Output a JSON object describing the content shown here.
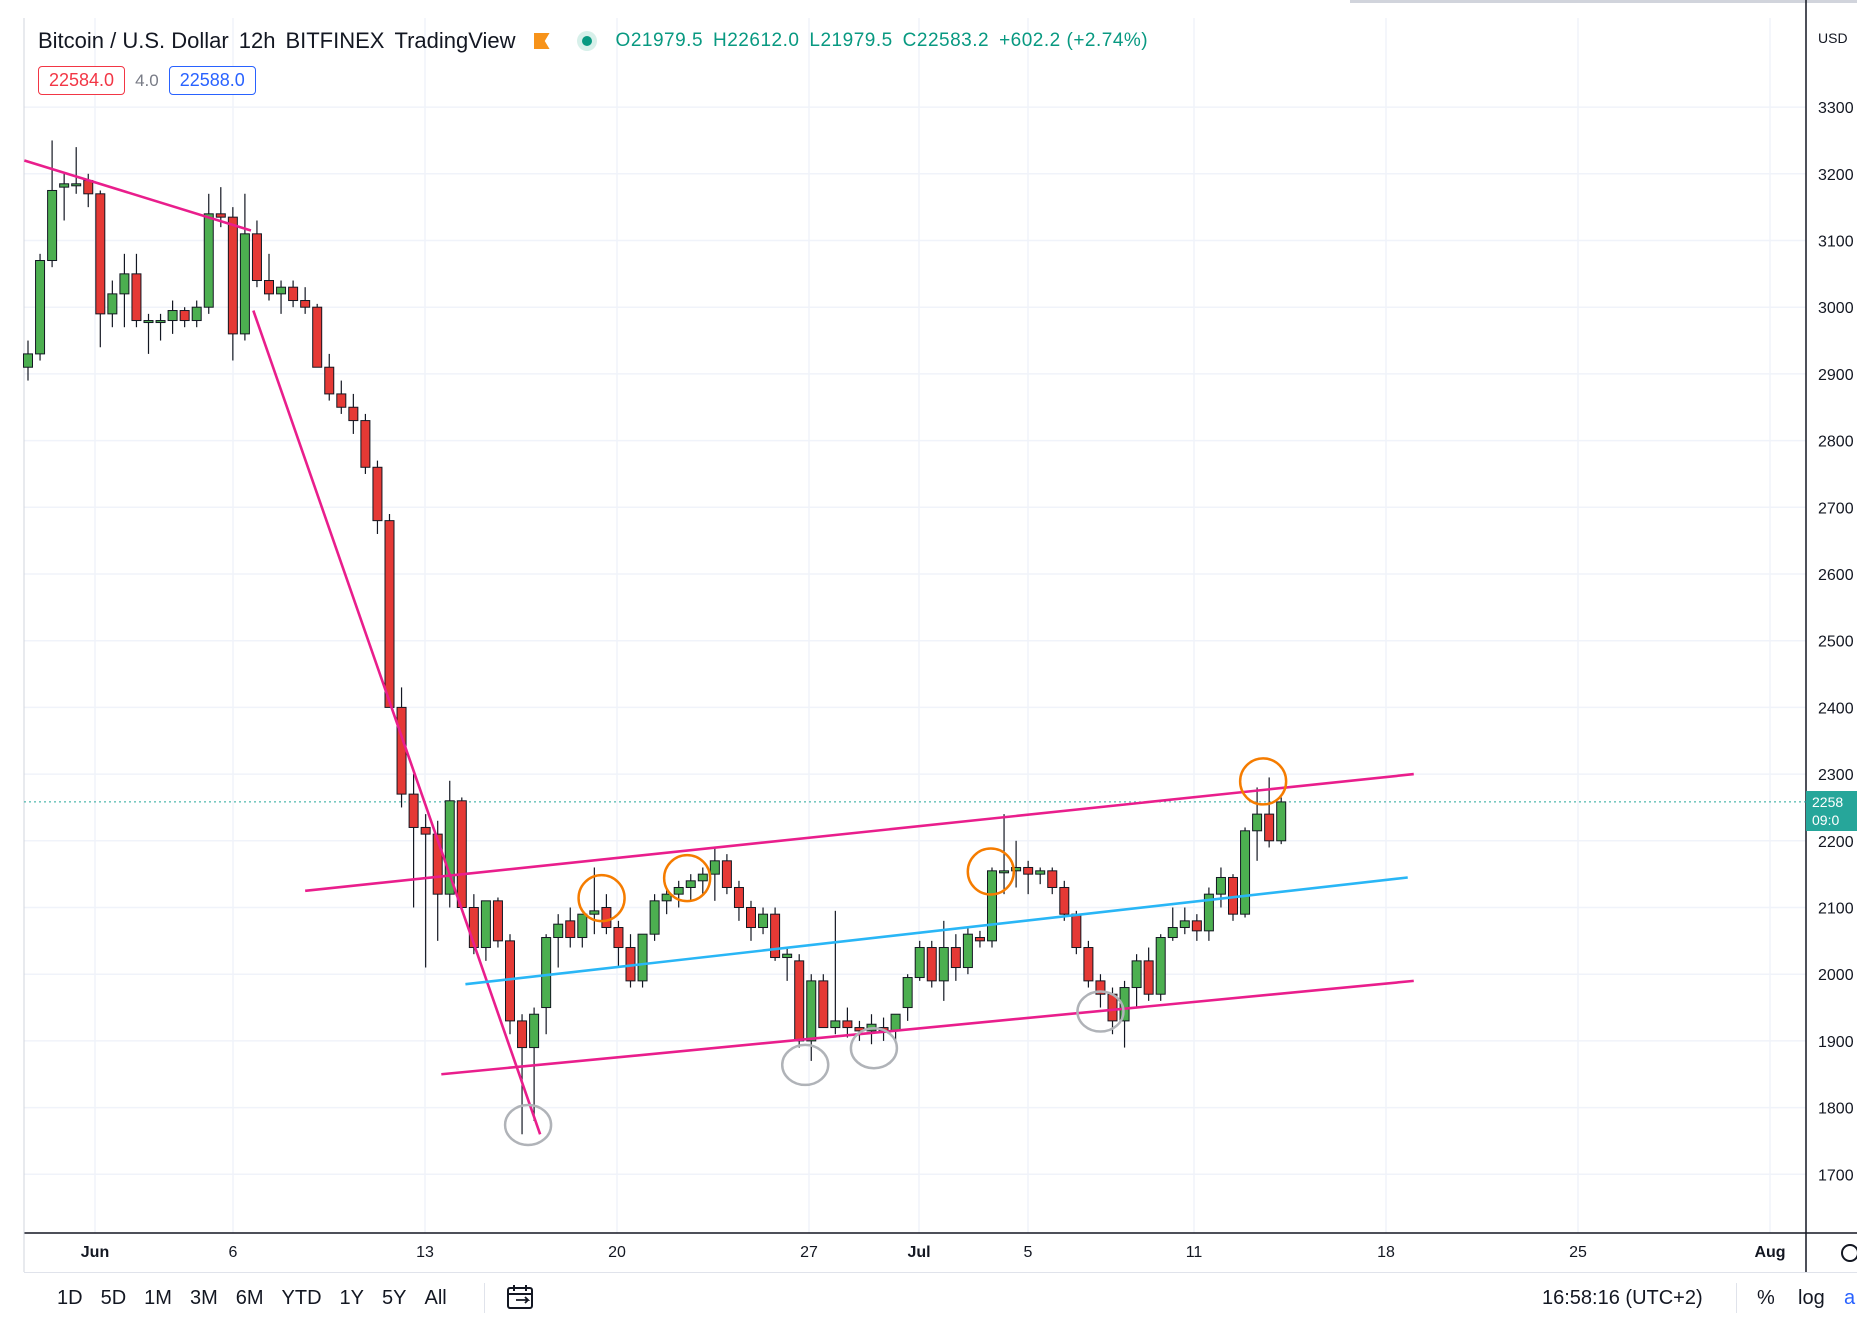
{
  "legend": {
    "symbol": "Bitcoin / U.S. Dollar",
    "interval": "12h",
    "exchange": "BITFINEX",
    "source": "TradingView",
    "open": "O21979.5",
    "high": "H22612.0",
    "low": "L21979.5",
    "close": "C22583.2",
    "change": "+602.2 (+2.74%)"
  },
  "price_boxes": {
    "sell": "22584.0",
    "spread": "4.0",
    "buy": "22588.0"
  },
  "price_axis": {
    "currency": "USD",
    "ticks": [
      "3300",
      "3200",
      "3100",
      "3000",
      "2900",
      "2800",
      "2700",
      "2600",
      "2500",
      "2400",
      "2300",
      "2200",
      "2100",
      "2000",
      "1900",
      "1800",
      "1700"
    ],
    "current_price": "2258",
    "countdown": "09:0"
  },
  "time_axis": {
    "ticks": [
      {
        "label": "Jun",
        "bold": true
      },
      {
        "label": "6",
        "bold": false
      },
      {
        "label": "13",
        "bold": false
      },
      {
        "label": "20",
        "bold": false
      },
      {
        "label": "27",
        "bold": false
      },
      {
        "label": "Jul",
        "bold": true
      },
      {
        "label": "5",
        "bold": false
      },
      {
        "label": "11",
        "bold": false
      },
      {
        "label": "18",
        "bold": false
      },
      {
        "label": "25",
        "bold": false
      },
      {
        "label": "Aug",
        "bold": true
      }
    ]
  },
  "bottom_toolbar": {
    "ranges": [
      "1D",
      "5D",
      "1M",
      "3M",
      "6M",
      "YTD",
      "1Y",
      "5Y",
      "All"
    ],
    "clock": "16:58:16 (UTC+2)",
    "percent": "%",
    "log": "log",
    "auto": "a"
  },
  "colors": {
    "up": "#4caf50",
    "down": "#e53935",
    "trendline": "#e91e8c",
    "midline": "#29b6f6",
    "resistance_circle": "#f57c00",
    "support_circle": "#b0b3b8"
  },
  "chart_data": {
    "type": "candlestick",
    "interval": "12h",
    "ylim": [
      16500,
      34000
    ],
    "candles": [
      {
        "o": 29100,
        "h": 29500,
        "l": 28900,
        "c": 29300
      },
      {
        "o": 29300,
        "h": 30800,
        "l": 29200,
        "c": 30700
      },
      {
        "o": 30700,
        "h": 32500,
        "l": 30600,
        "c": 31750
      },
      {
        "o": 31800,
        "h": 32000,
        "l": 31300,
        "c": 31850
      },
      {
        "o": 31850,
        "h": 32400,
        "l": 31700,
        "c": 31850
      },
      {
        "o": 31900,
        "h": 32000,
        "l": 31500,
        "c": 31700
      },
      {
        "o": 31700,
        "h": 31750,
        "l": 29400,
        "c": 29900
      },
      {
        "o": 29900,
        "h": 30400,
        "l": 29700,
        "c": 30200
      },
      {
        "o": 30200,
        "h": 30800,
        "l": 29700,
        "c": 30500
      },
      {
        "o": 30500,
        "h": 30800,
        "l": 29700,
        "c": 29800
      },
      {
        "o": 29800,
        "h": 29900,
        "l": 29300,
        "c": 29800
      },
      {
        "o": 29800,
        "h": 29900,
        "l": 29500,
        "c": 29800
      },
      {
        "o": 29800,
        "h": 30100,
        "l": 29600,
        "c": 29950
      },
      {
        "o": 29950,
        "h": 30000,
        "l": 29700,
        "c": 29800
      },
      {
        "o": 29800,
        "h": 30100,
        "l": 29700,
        "c": 30000
      },
      {
        "o": 30000,
        "h": 31700,
        "l": 29900,
        "c": 31400
      },
      {
        "o": 31400,
        "h": 31800,
        "l": 31200,
        "c": 31350
      },
      {
        "o": 31350,
        "h": 31500,
        "l": 29200,
        "c": 29600
      },
      {
        "o": 29600,
        "h": 31700,
        "l": 29500,
        "c": 31100
      },
      {
        "o": 31100,
        "h": 31300,
        "l": 30300,
        "c": 30400
      },
      {
        "o": 30400,
        "h": 30800,
        "l": 30100,
        "c": 30200
      },
      {
        "o": 30200,
        "h": 30400,
        "l": 29900,
        "c": 30300
      },
      {
        "o": 30300,
        "h": 30400,
        "l": 30000,
        "c": 30100
      },
      {
        "o": 30100,
        "h": 30300,
        "l": 29900,
        "c": 30000
      },
      {
        "o": 30000,
        "h": 30050,
        "l": 29200,
        "c": 29100
      },
      {
        "o": 29100,
        "h": 29300,
        "l": 28600,
        "c": 28700
      },
      {
        "o": 28700,
        "h": 28900,
        "l": 28400,
        "c": 28500
      },
      {
        "o": 28500,
        "h": 28700,
        "l": 28100,
        "c": 28300
      },
      {
        "o": 28300,
        "h": 28400,
        "l": 27500,
        "c": 27600
      },
      {
        "o": 27600,
        "h": 27700,
        "l": 26600,
        "c": 26800
      },
      {
        "o": 26800,
        "h": 26900,
        "l": 24000,
        "c": 24000
      },
      {
        "o": 24000,
        "h": 24300,
        "l": 22500,
        "c": 22700
      },
      {
        "o": 22700,
        "h": 23000,
        "l": 21000,
        "c": 22200
      },
      {
        "o": 22200,
        "h": 22400,
        "l": 20100,
        "c": 22100
      },
      {
        "o": 22100,
        "h": 22300,
        "l": 20500,
        "c": 21200
      },
      {
        "o": 21200,
        "h": 22900,
        "l": 21000,
        "c": 22600
      },
      {
        "o": 22600,
        "h": 22650,
        "l": 21000,
        "c": 21000
      },
      {
        "o": 21000,
        "h": 21200,
        "l": 20300,
        "c": 20400
      },
      {
        "o": 20400,
        "h": 21100,
        "l": 20200,
        "c": 21100
      },
      {
        "o": 21100,
        "h": 21150,
        "l": 20400,
        "c": 20500
      },
      {
        "o": 20500,
        "h": 20600,
        "l": 19100,
        "c": 19300
      },
      {
        "o": 19300,
        "h": 19400,
        "l": 17600,
        "c": 18900
      },
      {
        "o": 18900,
        "h": 19500,
        "l": 17800,
        "c": 19400
      },
      {
        "o": 19500,
        "h": 20600,
        "l": 19100,
        "c": 20550
      },
      {
        "o": 20550,
        "h": 20900,
        "l": 20100,
        "c": 20750
      },
      {
        "o": 20800,
        "h": 21000,
        "l": 20400,
        "c": 20550
      },
      {
        "o": 20550,
        "h": 20900,
        "l": 20400,
        "c": 20900
      },
      {
        "o": 20900,
        "h": 21600,
        "l": 20600,
        "c": 20950
      },
      {
        "o": 21000,
        "h": 21200,
        "l": 20600,
        "c": 20700
      },
      {
        "o": 20700,
        "h": 20800,
        "l": 20100,
        "c": 20400
      },
      {
        "o": 20400,
        "h": 20600,
        "l": 19800,
        "c": 19900
      },
      {
        "o": 19900,
        "h": 20600,
        "l": 19800,
        "c": 20600
      },
      {
        "o": 20600,
        "h": 21200,
        "l": 20500,
        "c": 21100
      },
      {
        "o": 21100,
        "h": 21300,
        "l": 20900,
        "c": 21200
      },
      {
        "o": 21200,
        "h": 21400,
        "l": 21000,
        "c": 21300
      },
      {
        "o": 21300,
        "h": 21500,
        "l": 21100,
        "c": 21400
      },
      {
        "o": 21400,
        "h": 21600,
        "l": 21200,
        "c": 21500
      },
      {
        "o": 21500,
        "h": 21900,
        "l": 21100,
        "c": 21700
      },
      {
        "o": 21700,
        "h": 21800,
        "l": 21200,
        "c": 21300
      },
      {
        "o": 21300,
        "h": 21400,
        "l": 20800,
        "c": 21000
      },
      {
        "o": 21000,
        "h": 21100,
        "l": 20500,
        "c": 20700
      },
      {
        "o": 20700,
        "h": 21000,
        "l": 20600,
        "c": 20900
      },
      {
        "o": 20900,
        "h": 21000,
        "l": 20200,
        "c": 20250
      },
      {
        "o": 20250,
        "h": 20400,
        "l": 19900,
        "c": 20300
      },
      {
        "o": 20200,
        "h": 20300,
        "l": 18900,
        "c": 19000
      },
      {
        "o": 19000,
        "h": 20000,
        "l": 18700,
        "c": 19900
      },
      {
        "o": 19900,
        "h": 20000,
        "l": 19200,
        "c": 19200
      },
      {
        "o": 19200,
        "h": 20950,
        "l": 19100,
        "c": 19300
      },
      {
        "o": 19300,
        "h": 19500,
        "l": 19050,
        "c": 19200
      },
      {
        "o": 19200,
        "h": 19300,
        "l": 19000,
        "c": 19150
      },
      {
        "o": 19150,
        "h": 19400,
        "l": 18950,
        "c": 19250
      },
      {
        "o": 19200,
        "h": 19350,
        "l": 19000,
        "c": 19150
      },
      {
        "o": 19150,
        "h": 19300,
        "l": 19000,
        "c": 19400
      },
      {
        "o": 19500,
        "h": 20000,
        "l": 19300,
        "c": 19950
      },
      {
        "o": 19950,
        "h": 20500,
        "l": 19900,
        "c": 20400
      },
      {
        "o": 20400,
        "h": 20500,
        "l": 19800,
        "c": 19900
      },
      {
        "o": 19900,
        "h": 20800,
        "l": 19600,
        "c": 20400
      },
      {
        "o": 20400,
        "h": 20600,
        "l": 19900,
        "c": 20100
      },
      {
        "o": 20100,
        "h": 20700,
        "l": 20000,
        "c": 20600
      },
      {
        "o": 20550,
        "h": 20650,
        "l": 20400,
        "c": 20500
      },
      {
        "o": 20500,
        "h": 21600,
        "l": 20400,
        "c": 21550
      },
      {
        "o": 21550,
        "h": 22400,
        "l": 21200,
        "c": 21550
      },
      {
        "o": 21550,
        "h": 22000,
        "l": 21300,
        "c": 21600
      },
      {
        "o": 21600,
        "h": 21700,
        "l": 21200,
        "c": 21500
      },
      {
        "o": 21500,
        "h": 21600,
        "l": 21350,
        "c": 21550
      },
      {
        "o": 21550,
        "h": 21600,
        "l": 21200,
        "c": 21300
      },
      {
        "o": 21300,
        "h": 21400,
        "l": 20800,
        "c": 20900
      },
      {
        "o": 20900,
        "h": 20950,
        "l": 20300,
        "c": 20400
      },
      {
        "o": 20400,
        "h": 20500,
        "l": 19800,
        "c": 19900
      },
      {
        "o": 19900,
        "h": 20000,
        "l": 19500,
        "c": 19700
      },
      {
        "o": 19700,
        "h": 19800,
        "l": 19100,
        "c": 19300
      },
      {
        "o": 19300,
        "h": 19900,
        "l": 18900,
        "c": 19800
      },
      {
        "o": 19800,
        "h": 20300,
        "l": 19500,
        "c": 20200
      },
      {
        "o": 20200,
        "h": 20400,
        "l": 19600,
        "c": 19700
      },
      {
        "o": 19700,
        "h": 20600,
        "l": 19600,
        "c": 20550
      },
      {
        "o": 20550,
        "h": 21000,
        "l": 20500,
        "c": 20700
      },
      {
        "o": 20700,
        "h": 21000,
        "l": 20600,
        "c": 20800
      },
      {
        "o": 20800,
        "h": 20900,
        "l": 20500,
        "c": 20650
      },
      {
        "o": 20650,
        "h": 21300,
        "l": 20500,
        "c": 21200
      },
      {
        "o": 21200,
        "h": 21600,
        "l": 21000,
        "c": 21450
      },
      {
        "o": 21450,
        "h": 21500,
        "l": 20800,
        "c": 20900
      },
      {
        "o": 20900,
        "h": 22200,
        "l": 20850,
        "c": 22150
      },
      {
        "o": 22150,
        "h": 22800,
        "l": 21700,
        "c": 22400
      },
      {
        "o": 22400,
        "h": 22950,
        "l": 21900,
        "c": 22000
      },
      {
        "o": 22000,
        "h": 22650,
        "l": 21950,
        "c": 22583
      }
    ],
    "trendlines": [
      {
        "color": "#e91e8c",
        "from": {
          "i": -0.3,
          "p": 32200
        },
        "to": {
          "i": 18.5,
          "p": 31150
        }
      },
      {
        "color": "#e91e8c",
        "from": {
          "i": 18.7,
          "p": 29950
        },
        "to": {
          "i": 42.5,
          "p": 17600
        }
      },
      {
        "color": "#e91e8c",
        "from": {
          "i": 23,
          "p": 21250
        },
        "to": {
          "i": 115,
          "p": 23000
        }
      },
      {
        "color": "#e91e8c",
        "from": {
          "i": 34.3,
          "p": 18500
        },
        "to": {
          "i": 115,
          "p": 19900
        }
      },
      {
        "color": "#29b6f6",
        "from": {
          "i": 36.3,
          "p": 19850
        },
        "to": {
          "i": 114.5,
          "p": 21450
        }
      }
    ],
    "resistance_circles": [
      47.6,
      54.7,
      79.9,
      102.5
    ],
    "support_circles": [
      41.5,
      64.5,
      70.2,
      89.0
    ]
  }
}
